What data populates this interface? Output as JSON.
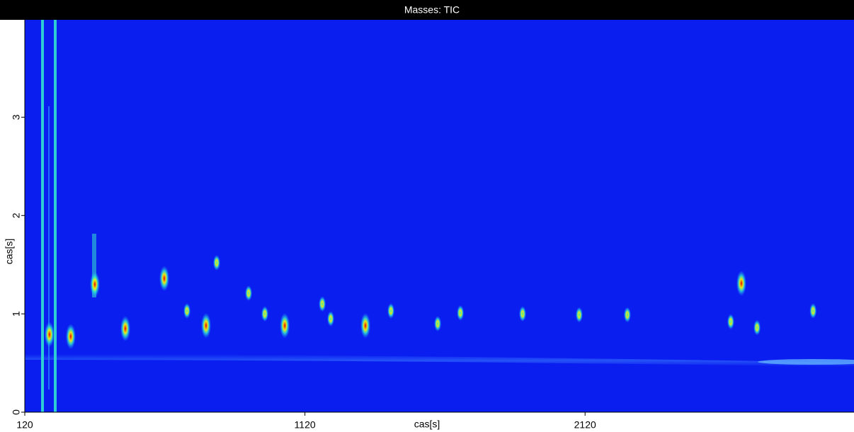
{
  "chart_data": {
    "type": "heatmap-peaks",
    "title": "Masses: TIC",
    "x_label": "cas[s]",
    "y_label": "cas[s]",
    "xlim": [
      120,
      3080
    ],
    "xticks": [
      120,
      1120,
      2120
    ],
    "ylim": [
      0,
      3.99
    ],
    "yticks": [
      0,
      1,
      2,
      3
    ],
    "grid": false,
    "background_color": "#0a1ef0",
    "x": [
      370,
      479,
      618,
      767,
      1048,
      1336,
      2678,
      284,
      208,
      699,
      805,
      919,
      977,
      1182,
      1212,
      1427,
      1594,
      1675,
      1897,
      2099,
      2271,
      2640,
      2734,
      2934
    ],
    "values": [
      1.3,
      0.85,
      1.36,
      0.88,
      0.88,
      0.88,
      1.31,
      0.77,
      0.79,
      1.03,
      1.52,
      1.21,
      1.0,
      1.1,
      0.95,
      1.03,
      0.9,
      1.01,
      1.0,
      0.99,
      0.99,
      0.92,
      0.86,
      1.03
    ],
    "point_colors": [
      "#e80000",
      "#e80000",
      "#e80000",
      "#e80000",
      "#e80000",
      "#e80000",
      "#e80000",
      "#e80000",
      "#e80000",
      "#20f0c0",
      "#20f0c0",
      "#20f0c0",
      "#20f0c0",
      "#20f0c0",
      "#20f0c0",
      "#20f0c0",
      "#20f0c0",
      "#20f0c0",
      "#20f0c0",
      "#20f0c0",
      "#20f0c0",
      "#20f0c0",
      "#20f0c0",
      "#20f0c0"
    ]
  }
}
